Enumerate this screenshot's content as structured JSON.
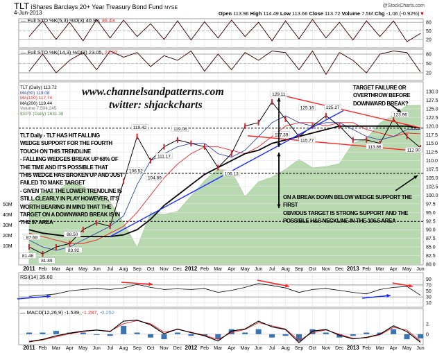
{
  "header": {
    "symbol": "TLT",
    "name": "iShares Barclays 20+ Year Treasury Bond Fund",
    "exchange": "NYSE",
    "date": "4-Jun-2013",
    "brand": "@StockCharts.com",
    "quote": {
      "open_label": "Open",
      "open": "113.96",
      "high_label": "High",
      "high": "114.49",
      "low_label": "Low",
      "low": "113.66",
      "close_label": "Close",
      "close": "113.72",
      "volume_label": "Volume",
      "volume": "7.5M",
      "chg_label": "Chg",
      "chg": "-1.06 (-0.92%)"
    }
  },
  "panels": {
    "sto1": {
      "label": "Full STO %K(5,3) %D(3) 40.90,",
      "d_value": "36.43",
      "ticks": [
        "80",
        "50",
        "20"
      ]
    },
    "sto2": {
      "label": "Full STO %K(14,3) %D(3) 23.05,",
      "d_value": "21.97",
      "ticks": [
        "80",
        "50",
        "20"
      ]
    },
    "main": {
      "legend": [
        "TLT (Daily) 113.72",
        "MA(50) 119.08",
        "MA(100) 117.74",
        "MA(200) 119.44",
        "Volume 7,504,245",
        "$SPX (Daily) 1631.38"
      ],
      "price_ticks": [
        "130.0",
        "127.5",
        "125.0",
        "122.5",
        "120.0",
        "117.5",
        "115.0",
        "112.5",
        "110.0",
        "107.5",
        "105.0",
        "102.5",
        "100.0",
        "97.5",
        "95.0",
        "92.5",
        "90.0",
        "87.5",
        "85.0",
        "82.5",
        "80.0"
      ],
      "volume_ticks": [
        "50M",
        "40M",
        "30M",
        "20M",
        "10M"
      ]
    },
    "rsi": {
      "label": "RSI(14) 35.60",
      "ticks": [
        "90",
        "70",
        "50",
        "30",
        "10"
      ]
    },
    "macd": {
      "label": "MACD(12,26,9) -1.539,",
      "signal": "-1.287,",
      "hist": "-0.252",
      "ticks": [
        "2",
        "0"
      ]
    }
  },
  "watermark": {
    "line1": "www.channelsandpatterns.com",
    "line2": "twitter: shjackcharts"
  },
  "annotations": {
    "left": "TLT Daily - TLT HAS HIT FALLING\nWEDGE SUPPORT FOR THE FOURTH\nTOUCH ON THIS TRENDLINE\n- FALLIING WEDGES BREAK UP 68% OF\nTHE TIME AND IT'S POSSIBLE THAT\nTHIS WEDGE HAS BROKEN UP AND JUST\nFAILED TO MAKE TARGET\n- GIVEN THAT THE LOWER TRENDLINE IS\nSTILL CLEARLY IN PLAY HOWEVER, IT'S\nWORTH BEARING IN MIND THAT THE\nTARGET ON A DOWNWARD BREAK IS IN\nTHE 97 AREA",
    "top_right": "TARGET FAILURE OR\nOVERTHROW BEFORE\nDOWNWARD BREAK?",
    "bottom": "ON A BREAK DOWN BELOW WEDGE SUPPORT THE FIRST\nOBVIOUS TARGET IS STRONG SUPPORT AND THE\nPOSSIBLE H&S NECKLINE IN THE 106.5 AREA"
  },
  "chart_data": {
    "type": "line",
    "title": "TLT iShares Barclays 20+ Year Treasury Bond Fund NYSE",
    "x_labels": [
      "2011",
      "Feb",
      "Mar",
      "Apr",
      "May",
      "Jun",
      "Jul",
      "Aug",
      "Sep",
      "Oct",
      "Nov",
      "Dec",
      "2012",
      "Feb",
      "Mar",
      "Apr",
      "May",
      "Jun",
      "Jul",
      "Aug",
      "Sep",
      "Oct",
      "Nov",
      "Dec",
      "2013",
      "Feb",
      "Mar",
      "Apr",
      "May",
      "Jun"
    ],
    "ylim": [
      80,
      130
    ],
    "grid": true,
    "series": [
      {
        "name": "TLT (Daily)",
        "color": "#000000",
        "values": [
          85,
          83,
          85,
          86,
          90,
          92,
          91,
          104,
          117,
          110,
          114,
          116,
          115,
          114,
          108,
          112,
          120,
          121,
          127,
          122,
          117,
          120,
          123,
          120,
          116,
          116,
          115,
          122,
          117,
          113.7
        ]
      },
      {
        "name": "MA(50)",
        "color": "#3344aa",
        "values": [
          87,
          85,
          84,
          85,
          87,
          89,
          91,
          94,
          103,
          110,
          112,
          114,
          115,
          115,
          112,
          111,
          113,
          117,
          121,
          123,
          121,
          120,
          121,
          121,
          119,
          117,
          116,
          117,
          119,
          119.08
        ]
      },
      {
        "name": "MA(100)",
        "color": "#ee2222",
        "values": [
          89,
          88,
          87,
          86,
          86,
          87,
          89,
          91,
          95,
          100,
          105,
          109,
          112,
          114,
          114,
          113,
          112,
          114,
          117,
          120,
          121,
          121,
          120,
          121,
          121,
          119,
          118,
          117,
          118,
          117.74
        ]
      },
      {
        "name": "MA(200)",
        "color": "#000000",
        "values": [
          90,
          89,
          88.5,
          88,
          88,
          88,
          88,
          88.5,
          90,
          93,
          97,
          100,
          103,
          106,
          108,
          110,
          112,
          113,
          115,
          116,
          117,
          118,
          119,
          120,
          120,
          120,
          120,
          120,
          120,
          119.44
        ]
      },
      {
        "name": "$SPX (Daily)",
        "color": "#a8cfa0",
        "values": [
          1286,
          1327,
          1326,
          1364,
          1345,
          1321,
          1292,
          1219,
          1131,
          1253,
          1247,
          1258,
          1312,
          1366,
          1408,
          1398,
          1310,
          1362,
          1379,
          1406,
          1441,
          1412,
          1416,
          1426,
          1498,
          1515,
          1569,
          1597,
          1631,
          1631.38
        ]
      }
    ],
    "price_labels": [
      {
        "m": 1.2,
        "v": 81.89,
        "text": "81.89"
      },
      {
        "m": 0,
        "v": 81.48,
        "text": "81.48"
      },
      {
        "m": 0.2,
        "v": 87.68,
        "text": "87.68"
      },
      {
        "m": 3.2,
        "v": 88.5,
        "text": "88.50"
      },
      {
        "m": 3.3,
        "v": 83.92,
        "text": "83.92"
      },
      {
        "m": 7.3,
        "v": 106.52,
        "text": "106.52"
      },
      {
        "m": 8.2,
        "v": 119.42,
        "text": "119.42"
      },
      {
        "m": 9.3,
        "v": 104.89,
        "text": "104.89"
      },
      {
        "m": 10.0,
        "v": 111.17,
        "text": "111.17"
      },
      {
        "m": 11.2,
        "v": 119.06,
        "text": "119.06"
      },
      {
        "m": 15.0,
        "v": 106.13,
        "text": "106.13"
      },
      {
        "m": 18.5,
        "v": 129.11,
        "text": "129.11"
      },
      {
        "m": 18.7,
        "v": 117.39,
        "text": "117.39"
      },
      {
        "m": 20.6,
        "v": 125.16,
        "text": "125.16"
      },
      {
        "m": 20.6,
        "v": 115.77,
        "text": "115.77"
      },
      {
        "m": 22.5,
        "v": 125.27,
        "text": "125.27"
      },
      {
        "m": 25.6,
        "v": 113.86,
        "text": "113.86"
      },
      {
        "m": 27.5,
        "v": 123.96,
        "text": "123.96"
      },
      {
        "m": 28.5,
        "v": 112.9,
        "text": "112.90"
      }
    ],
    "trendlines": [
      {
        "color": "#ff2020",
        "from": [
          18.5,
          129.11
        ],
        "to": [
          29,
          119.5
        ]
      },
      {
        "color": "#ff2020",
        "from": [
          16.2,
          117.2
        ],
        "to": [
          29,
          112.7
        ]
      },
      {
        "color": "#1a2cff",
        "from": [
          6,
          88
        ],
        "to": [
          23.3,
          124.5
        ]
      }
    ],
    "horizontal_levels": [
      119.4,
      106.3,
      92.4
    ],
    "rsi": {
      "ylim": [
        0,
        100
      ],
      "values": [
        32,
        36,
        40,
        50,
        55,
        58,
        55,
        60,
        72,
        62,
        55,
        57,
        55,
        58,
        45,
        52,
        62,
        75,
        68,
        60,
        45,
        55,
        58,
        52,
        45,
        40,
        55,
        62,
        65,
        35.6
      ]
    },
    "macd": {
      "ylim": [
        -2,
        3.3
      ],
      "macd": [
        -1.4,
        -1.0,
        -0.3,
        0.2,
        0.6,
        0.8,
        0.5,
        2.5,
        2.7,
        1.8,
        0.1,
        1.0,
        0.3,
        -0.3,
        -1.3,
        0.6,
        1.0,
        2.5,
        1.4,
        0.9,
        -1.6,
        0.6,
        0.9,
        -0.2,
        -0.9,
        -0.6,
        0.0,
        1.6,
        0.5,
        -1.539
      ],
      "signal": [
        -1.5,
        -1.1,
        -0.5,
        0.1,
        0.5,
        0.8,
        0.6,
        2.0,
        2.6,
        2.0,
        0.4,
        0.9,
        0.4,
        -0.2,
        -1.0,
        0.3,
        0.9,
        2.2,
        1.6,
        1.0,
        -1.2,
        0.3,
        0.8,
        0.0,
        -0.8,
        -0.7,
        -0.1,
        1.3,
        0.8,
        -1.287
      ]
    },
    "sto1": {
      "ylim": [
        0,
        100
      ],
      "values": [
        30,
        85,
        20,
        80,
        15,
        90,
        25,
        88,
        30,
        75,
        20,
        85,
        18,
        82,
        25,
        88,
        30,
        80,
        15,
        85,
        22,
        90,
        25,
        80,
        18,
        85,
        30,
        85,
        12,
        40.9
      ]
    },
    "sto2": {
      "ylim": [
        0,
        100
      ],
      "values": [
        25,
        80,
        20,
        60,
        85,
        30,
        90,
        70,
        85,
        40,
        75,
        60,
        90,
        25,
        80,
        30,
        85,
        60,
        90,
        85,
        30,
        90,
        15,
        85,
        60,
        20,
        80,
        90,
        85,
        23.05
      ]
    }
  }
}
